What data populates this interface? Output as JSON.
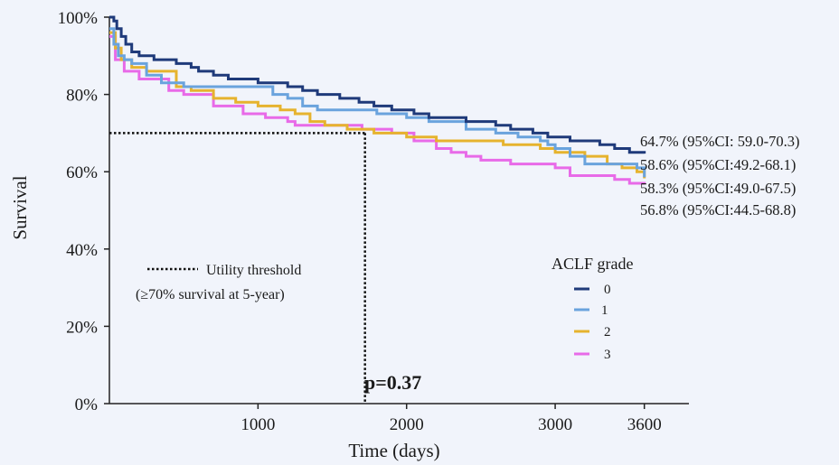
{
  "chart_data": {
    "type": "line",
    "subtype": "kaplan-meier step",
    "title": "",
    "xlabel": "Time (days)",
    "ylabel": "Survival",
    "xlim": [
      0,
      3900
    ],
    "ylim": [
      0,
      100
    ],
    "x_ticks": [
      1000,
      2000,
      3000,
      3600
    ],
    "x_tick_labels": [
      "1000",
      "2000",
      "3000",
      "3600"
    ],
    "y_ticks": [
      0,
      20,
      40,
      60,
      80,
      100
    ],
    "y_tick_labels": [
      "0%",
      "20%",
      "40%",
      "60%",
      "80%",
      "100%"
    ],
    "grid": false,
    "legend": {
      "title": "ACLF grade",
      "placement": "bottom-right",
      "entries": [
        "0",
        "1",
        "2",
        "3"
      ]
    },
    "threshold": {
      "y": 70,
      "x": 1720,
      "label_line1": "Utility  threshold",
      "label_line2": "(≥70% survival  at 5-year)"
    },
    "p_value_text": "p=0.37",
    "series": [
      {
        "name": "0",
        "color": "#1f3a7a",
        "end_label": "64.7% (95%CI: 59.0-70.3)",
        "points": [
          [
            0,
            100
          ],
          [
            30,
            99
          ],
          [
            50,
            97
          ],
          [
            80,
            95
          ],
          [
            110,
            93
          ],
          [
            150,
            91
          ],
          [
            200,
            90
          ],
          [
            300,
            89
          ],
          [
            450,
            88
          ],
          [
            550,
            87
          ],
          [
            600,
            86
          ],
          [
            700,
            85
          ],
          [
            800,
            84
          ],
          [
            1000,
            83
          ],
          [
            1200,
            82
          ],
          [
            1300,
            81
          ],
          [
            1400,
            80
          ],
          [
            1550,
            79
          ],
          [
            1680,
            78
          ],
          [
            1780,
            77
          ],
          [
            1900,
            76
          ],
          [
            2050,
            75
          ],
          [
            2150,
            74
          ],
          [
            2400,
            73
          ],
          [
            2600,
            72
          ],
          [
            2700,
            71
          ],
          [
            2850,
            70
          ],
          [
            2950,
            69
          ],
          [
            3100,
            68
          ],
          [
            3300,
            67
          ],
          [
            3400,
            66
          ],
          [
            3500,
            65
          ],
          [
            3600,
            64.7
          ]
        ]
      },
      {
        "name": "1",
        "color": "#6aa3dd",
        "end_label": "58.6% (95%CI:49.2-68.1)",
        "points": [
          [
            0,
            97
          ],
          [
            30,
            93
          ],
          [
            60,
            90
          ],
          [
            100,
            89
          ],
          [
            150,
            88
          ],
          [
            250,
            85
          ],
          [
            350,
            83
          ],
          [
            500,
            82
          ],
          [
            900,
            82
          ],
          [
            1100,
            80
          ],
          [
            1200,
            79
          ],
          [
            1300,
            77
          ],
          [
            1400,
            76
          ],
          [
            1800,
            75
          ],
          [
            2000,
            74
          ],
          [
            2150,
            73
          ],
          [
            2400,
            71
          ],
          [
            2600,
            70
          ],
          [
            2750,
            69
          ],
          [
            2900,
            68
          ],
          [
            2950,
            67
          ],
          [
            3000,
            66
          ],
          [
            3100,
            64
          ],
          [
            3200,
            62
          ],
          [
            3550,
            61
          ],
          [
            3600,
            58.6
          ]
        ]
      },
      {
        "name": "2",
        "color": "#e6b32e",
        "end_label": "58.3% (95%CI:49.0-67.5)",
        "points": [
          [
            0,
            96
          ],
          [
            40,
            92
          ],
          [
            80,
            89
          ],
          [
            150,
            87
          ],
          [
            250,
            86
          ],
          [
            450,
            82
          ],
          [
            550,
            81
          ],
          [
            700,
            79
          ],
          [
            850,
            78
          ],
          [
            1000,
            77
          ],
          [
            1150,
            76
          ],
          [
            1250,
            75
          ],
          [
            1350,
            73
          ],
          [
            1450,
            72
          ],
          [
            1600,
            71
          ],
          [
            1780,
            70
          ],
          [
            2000,
            69
          ],
          [
            2200,
            68
          ],
          [
            2500,
            68
          ],
          [
            2650,
            67
          ],
          [
            2800,
            67
          ],
          [
            2900,
            66
          ],
          [
            3000,
            65
          ],
          [
            3200,
            64
          ],
          [
            3350,
            62
          ],
          [
            3450,
            61
          ],
          [
            3550,
            60
          ],
          [
            3600,
            58.3
          ]
        ]
      },
      {
        "name": "3",
        "color": "#e86ae8",
        "end_label": "56.8% (95%CI:44.5-68.8)",
        "points": [
          [
            0,
            95
          ],
          [
            40,
            89
          ],
          [
            100,
            86
          ],
          [
            200,
            84
          ],
          [
            400,
            81
          ],
          [
            500,
            80
          ],
          [
            700,
            77
          ],
          [
            900,
            75
          ],
          [
            1050,
            74
          ],
          [
            1200,
            73
          ],
          [
            1250,
            72
          ],
          [
            1500,
            72
          ],
          [
            1700,
            71
          ],
          [
            1900,
            70
          ],
          [
            2050,
            68
          ],
          [
            2200,
            66
          ],
          [
            2300,
            65
          ],
          [
            2400,
            64
          ],
          [
            2500,
            63
          ],
          [
            2700,
            62
          ],
          [
            2900,
            62
          ],
          [
            3000,
            61
          ],
          [
            3100,
            59
          ],
          [
            3400,
            58
          ],
          [
            3500,
            57
          ],
          [
            3600,
            56.8
          ]
        ]
      }
    ]
  }
}
